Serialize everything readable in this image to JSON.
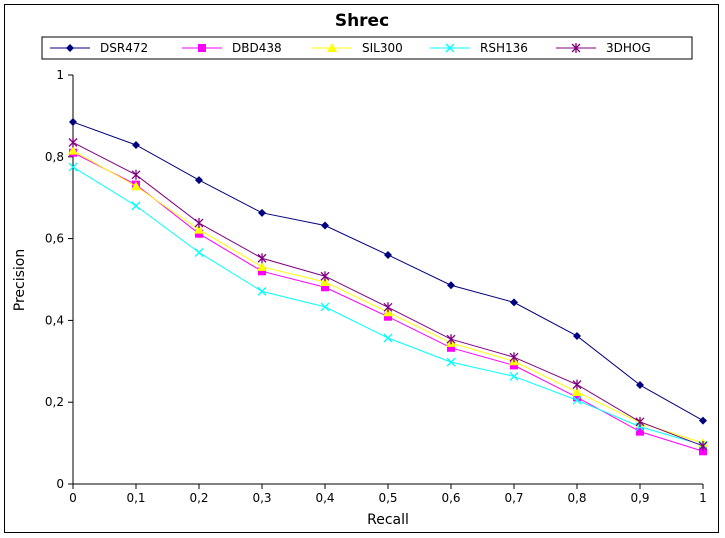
{
  "chart_data": {
    "type": "line",
    "title": "Shrec",
    "xlabel": "Recall",
    "ylabel": "Precision",
    "xlim": [
      0,
      1
    ],
    "ylim": [
      0,
      1
    ],
    "x": [
      0,
      0.1,
      0.2,
      0.3,
      0.4,
      0.5,
      0.6,
      0.7,
      0.8,
      0.9,
      1
    ],
    "x_tick_labels": [
      "0",
      "0,1",
      "0,2",
      "0,3",
      "0,4",
      "0,5",
      "0,6",
      "0,7",
      "0,8",
      "0,9",
      "1"
    ],
    "y_ticks": [
      0,
      0.2,
      0.4,
      0.6,
      0.8,
      1
    ],
    "y_tick_labels": [
      "0",
      "0,2",
      "0,4",
      "0,6",
      "0,8",
      "1"
    ],
    "grid": false,
    "legend_position": "top",
    "series": [
      {
        "name": "DSR472",
        "color": "#000080",
        "marker": "diamond",
        "values": [
          0.885,
          0.829,
          0.743,
          0.663,
          0.632,
          0.56,
          0.486,
          0.444,
          0.362,
          0.242,
          0.155
        ]
      },
      {
        "name": "DBD438",
        "color": "#ff00ff",
        "marker": "square",
        "values": [
          0.81,
          0.732,
          0.612,
          0.52,
          0.481,
          0.409,
          0.333,
          0.29,
          0.212,
          0.128,
          0.08
        ]
      },
      {
        "name": "SIL300",
        "color": "#ffff00",
        "marker": "triangle",
        "values": [
          0.815,
          0.728,
          0.622,
          0.531,
          0.494,
          0.42,
          0.345,
          0.3,
          0.225,
          0.15,
          0.1
        ]
      },
      {
        "name": "RSH136",
        "color": "#00ffff",
        "marker": "x",
        "values": [
          0.775,
          0.68,
          0.566,
          0.471,
          0.433,
          0.357,
          0.298,
          0.263,
          0.205,
          0.14,
          0.095
        ]
      },
      {
        "name": "3DHOG",
        "color": "#800080",
        "marker": "star",
        "values": [
          0.835,
          0.756,
          0.638,
          0.552,
          0.508,
          0.432,
          0.354,
          0.31,
          0.243,
          0.152,
          0.093
        ]
      }
    ]
  }
}
